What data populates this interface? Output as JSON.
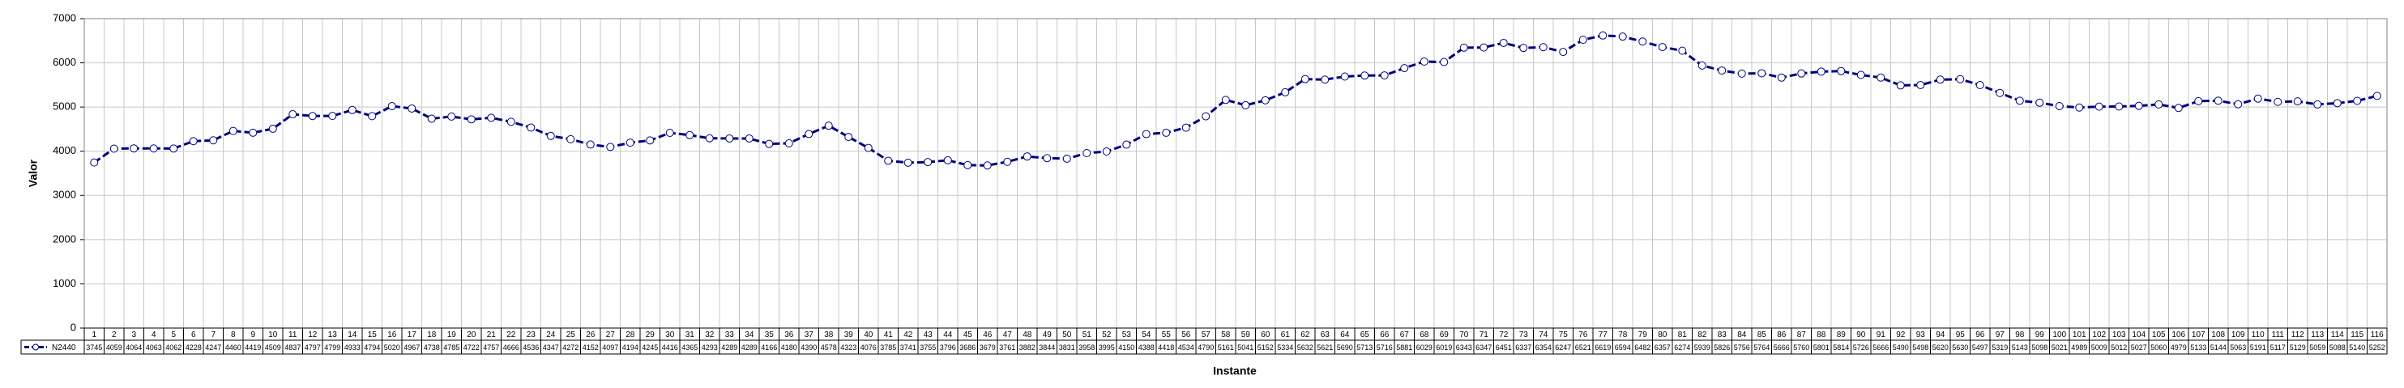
{
  "chart_data": {
    "type": "line",
    "y_label": "Valor",
    "x_label": "Instante",
    "categories": [
      1,
      2,
      3,
      4,
      5,
      6,
      7,
      8,
      9,
      10,
      11,
      12,
      13,
      14,
      15,
      16,
      17,
      18,
      19,
      20,
      21,
      22,
      23,
      24,
      25,
      26,
      27,
      28,
      29,
      30,
      31,
      32,
      33,
      34,
      35,
      36,
      37,
      38,
      39,
      40,
      41,
      42,
      43,
      44,
      45,
      46,
      47,
      48,
      49,
      50,
      51,
      52,
      53,
      54,
      55,
      56,
      57,
      58,
      59,
      60,
      61,
      62,
      63,
      64,
      65,
      66,
      67,
      68,
      69,
      70,
      71,
      72,
      73,
      74,
      75,
      76,
      77,
      78,
      79,
      80,
      81,
      82,
      83,
      84,
      85,
      86,
      87,
      88,
      89,
      90,
      91,
      92,
      93,
      94,
      95,
      96,
      97,
      98,
      99,
      100,
      101,
      102,
      103,
      104,
      105,
      106,
      107,
      108,
      109,
      110,
      111,
      112,
      113,
      114,
      115,
      116
    ],
    "series": [
      {
        "name": "N2440",
        "color": "#000080",
        "values": [
          3745,
          4059,
          4064,
          4063,
          4062,
          4228,
          4247,
          4460,
          4419,
          4509,
          4837,
          4797,
          4799,
          4933,
          4794,
          5020,
          4967,
          4738,
          4785,
          4722,
          4757,
          4666,
          4536,
          4347,
          4272,
          4152,
          4097,
          4194,
          4245,
          4416,
          4365,
          4293,
          4289,
          4289,
          4166,
          4180,
          4390,
          4578,
          4323,
          4076,
          3785,
          3741,
          3755,
          3796,
          3686,
          3679,
          3761,
          3882,
          3844,
          3831,
          3958,
          3995,
          4150,
          4388,
          4418,
          4534,
          4790,
          5161,
          5041,
          5152,
          5334,
          5632,
          5621,
          5690,
          5713,
          5716,
          5881,
          6029,
          6019,
          6343,
          6347,
          6451,
          6337,
          6354,
          6247,
          6521,
          6619,
          6594,
          6482,
          6357,
          6274,
          5939,
          5826,
          5756,
          5764,
          5666,
          5760,
          5801,
          5814,
          5726,
          5666,
          5490,
          5498,
          5620,
          5630,
          5497,
          5319,
          5143,
          5098,
          5021,
          4989,
          5009,
          5012,
          5027,
          5060,
          4979,
          5133,
          5144,
          5063,
          5191,
          5117,
          5129,
          5059,
          5088,
          5140,
          5252
        ]
      }
    ],
    "ylim": [
      0,
      7000
    ],
    "yticks": [
      0,
      1000,
      2000,
      3000,
      4000,
      5000,
      6000,
      7000
    ],
    "grid": true
  }
}
